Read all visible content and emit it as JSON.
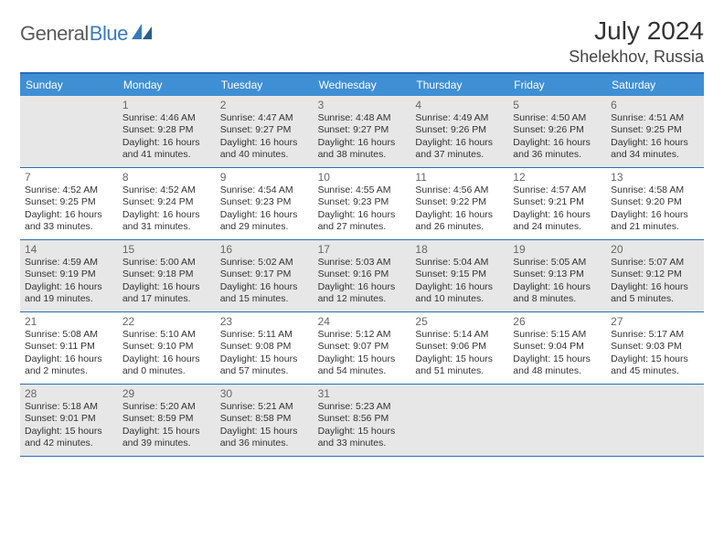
{
  "logo": {
    "part1": "General",
    "part2": "Blue"
  },
  "title": "July 2024",
  "location": "Shelekhov, Russia",
  "weekdays": [
    "Sunday",
    "Monday",
    "Tuesday",
    "Wednesday",
    "Thursday",
    "Friday",
    "Saturday"
  ],
  "colors": {
    "header_bar": "#3f8fd4",
    "border": "#2a6db3",
    "shaded": "#e7e7e7",
    "logo_blue": "#3a7ab8"
  },
  "weeks": [
    [
      {
        "num": "",
        "shaded": true,
        "sunrise": "",
        "sunset": "",
        "daylight": ""
      },
      {
        "num": "1",
        "shaded": true,
        "sunrise": "Sunrise: 4:46 AM",
        "sunset": "Sunset: 9:28 PM",
        "daylight": "Daylight: 16 hours and 41 minutes."
      },
      {
        "num": "2",
        "shaded": true,
        "sunrise": "Sunrise: 4:47 AM",
        "sunset": "Sunset: 9:27 PM",
        "daylight": "Daylight: 16 hours and 40 minutes."
      },
      {
        "num": "3",
        "shaded": true,
        "sunrise": "Sunrise: 4:48 AM",
        "sunset": "Sunset: 9:27 PM",
        "daylight": "Daylight: 16 hours and 38 minutes."
      },
      {
        "num": "4",
        "shaded": true,
        "sunrise": "Sunrise: 4:49 AM",
        "sunset": "Sunset: 9:26 PM",
        "daylight": "Daylight: 16 hours and 37 minutes."
      },
      {
        "num": "5",
        "shaded": true,
        "sunrise": "Sunrise: 4:50 AM",
        "sunset": "Sunset: 9:26 PM",
        "daylight": "Daylight: 16 hours and 36 minutes."
      },
      {
        "num": "6",
        "shaded": true,
        "sunrise": "Sunrise: 4:51 AM",
        "sunset": "Sunset: 9:25 PM",
        "daylight": "Daylight: 16 hours and 34 minutes."
      }
    ],
    [
      {
        "num": "7",
        "shaded": false,
        "sunrise": "Sunrise: 4:52 AM",
        "sunset": "Sunset: 9:25 PM",
        "daylight": "Daylight: 16 hours and 33 minutes."
      },
      {
        "num": "8",
        "shaded": false,
        "sunrise": "Sunrise: 4:52 AM",
        "sunset": "Sunset: 9:24 PM",
        "daylight": "Daylight: 16 hours and 31 minutes."
      },
      {
        "num": "9",
        "shaded": false,
        "sunrise": "Sunrise: 4:54 AM",
        "sunset": "Sunset: 9:23 PM",
        "daylight": "Daylight: 16 hours and 29 minutes."
      },
      {
        "num": "10",
        "shaded": false,
        "sunrise": "Sunrise: 4:55 AM",
        "sunset": "Sunset: 9:23 PM",
        "daylight": "Daylight: 16 hours and 27 minutes."
      },
      {
        "num": "11",
        "shaded": false,
        "sunrise": "Sunrise: 4:56 AM",
        "sunset": "Sunset: 9:22 PM",
        "daylight": "Daylight: 16 hours and 26 minutes."
      },
      {
        "num": "12",
        "shaded": false,
        "sunrise": "Sunrise: 4:57 AM",
        "sunset": "Sunset: 9:21 PM",
        "daylight": "Daylight: 16 hours and 24 minutes."
      },
      {
        "num": "13",
        "shaded": false,
        "sunrise": "Sunrise: 4:58 AM",
        "sunset": "Sunset: 9:20 PM",
        "daylight": "Daylight: 16 hours and 21 minutes."
      }
    ],
    [
      {
        "num": "14",
        "shaded": true,
        "sunrise": "Sunrise: 4:59 AM",
        "sunset": "Sunset: 9:19 PM",
        "daylight": "Daylight: 16 hours and 19 minutes."
      },
      {
        "num": "15",
        "shaded": true,
        "sunrise": "Sunrise: 5:00 AM",
        "sunset": "Sunset: 9:18 PM",
        "daylight": "Daylight: 16 hours and 17 minutes."
      },
      {
        "num": "16",
        "shaded": true,
        "sunrise": "Sunrise: 5:02 AM",
        "sunset": "Sunset: 9:17 PM",
        "daylight": "Daylight: 16 hours and 15 minutes."
      },
      {
        "num": "17",
        "shaded": true,
        "sunrise": "Sunrise: 5:03 AM",
        "sunset": "Sunset: 9:16 PM",
        "daylight": "Daylight: 16 hours and 12 minutes."
      },
      {
        "num": "18",
        "shaded": true,
        "sunrise": "Sunrise: 5:04 AM",
        "sunset": "Sunset: 9:15 PM",
        "daylight": "Daylight: 16 hours and 10 minutes."
      },
      {
        "num": "19",
        "shaded": true,
        "sunrise": "Sunrise: 5:05 AM",
        "sunset": "Sunset: 9:13 PM",
        "daylight": "Daylight: 16 hours and 8 minutes."
      },
      {
        "num": "20",
        "shaded": true,
        "sunrise": "Sunrise: 5:07 AM",
        "sunset": "Sunset: 9:12 PM",
        "daylight": "Daylight: 16 hours and 5 minutes."
      }
    ],
    [
      {
        "num": "21",
        "shaded": false,
        "sunrise": "Sunrise: 5:08 AM",
        "sunset": "Sunset: 9:11 PM",
        "daylight": "Daylight: 16 hours and 2 minutes."
      },
      {
        "num": "22",
        "shaded": false,
        "sunrise": "Sunrise: 5:10 AM",
        "sunset": "Sunset: 9:10 PM",
        "daylight": "Daylight: 16 hours and 0 minutes."
      },
      {
        "num": "23",
        "shaded": false,
        "sunrise": "Sunrise: 5:11 AM",
        "sunset": "Sunset: 9:08 PM",
        "daylight": "Daylight: 15 hours and 57 minutes."
      },
      {
        "num": "24",
        "shaded": false,
        "sunrise": "Sunrise: 5:12 AM",
        "sunset": "Sunset: 9:07 PM",
        "daylight": "Daylight: 15 hours and 54 minutes."
      },
      {
        "num": "25",
        "shaded": false,
        "sunrise": "Sunrise: 5:14 AM",
        "sunset": "Sunset: 9:06 PM",
        "daylight": "Daylight: 15 hours and 51 minutes."
      },
      {
        "num": "26",
        "shaded": false,
        "sunrise": "Sunrise: 5:15 AM",
        "sunset": "Sunset: 9:04 PM",
        "daylight": "Daylight: 15 hours and 48 minutes."
      },
      {
        "num": "27",
        "shaded": false,
        "sunrise": "Sunrise: 5:17 AM",
        "sunset": "Sunset: 9:03 PM",
        "daylight": "Daylight: 15 hours and 45 minutes."
      }
    ],
    [
      {
        "num": "28",
        "shaded": true,
        "sunrise": "Sunrise: 5:18 AM",
        "sunset": "Sunset: 9:01 PM",
        "daylight": "Daylight: 15 hours and 42 minutes."
      },
      {
        "num": "29",
        "shaded": true,
        "sunrise": "Sunrise: 5:20 AM",
        "sunset": "Sunset: 8:59 PM",
        "daylight": "Daylight: 15 hours and 39 minutes."
      },
      {
        "num": "30",
        "shaded": true,
        "sunrise": "Sunrise: 5:21 AM",
        "sunset": "Sunset: 8:58 PM",
        "daylight": "Daylight: 15 hours and 36 minutes."
      },
      {
        "num": "31",
        "shaded": true,
        "sunrise": "Sunrise: 5:23 AM",
        "sunset": "Sunset: 8:56 PM",
        "daylight": "Daylight: 15 hours and 33 minutes."
      },
      {
        "num": "",
        "shaded": true,
        "sunrise": "",
        "sunset": "",
        "daylight": ""
      },
      {
        "num": "",
        "shaded": true,
        "sunrise": "",
        "sunset": "",
        "daylight": ""
      },
      {
        "num": "",
        "shaded": true,
        "sunrise": "",
        "sunset": "",
        "daylight": ""
      }
    ]
  ]
}
